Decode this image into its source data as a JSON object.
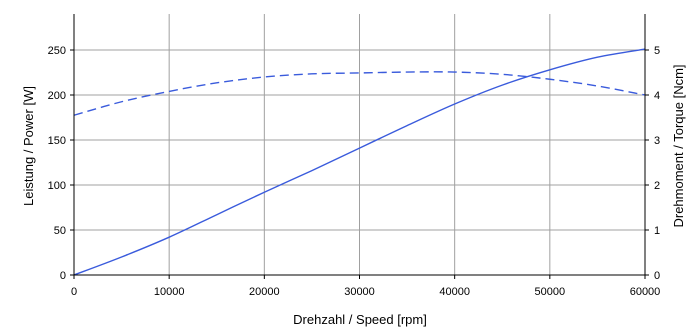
{
  "chart_data": {
    "type": "line",
    "xlabel": "Drehzahl / Speed [rpm]",
    "ylabel": "Leistung / Power [W]",
    "y2label": "Drehmoment / Torque [Ncm]",
    "xlim": [
      0,
      60000
    ],
    "ylim": [
      0,
      290
    ],
    "y2lim": [
      0,
      5.8
    ],
    "x_ticks": [
      0,
      10000,
      20000,
      30000,
      40000,
      50000,
      60000
    ],
    "y_ticks": [
      0,
      50,
      100,
      150,
      200,
      250
    ],
    "y2_ticks": [
      0,
      1,
      2,
      3,
      4,
      5
    ],
    "grid": "vertical",
    "line_color": "#3a5bdc",
    "series": [
      {
        "axis": "left",
        "style": "solid",
        "x": [
          0,
          5000,
          10000,
          15000,
          20000,
          25000,
          30000,
          35000,
          40000,
          45000,
          50000,
          55000,
          60000
        ],
        "values": [
          0,
          20,
          42,
          67,
          92,
          116,
          141,
          166,
          190,
          211,
          228,
          242,
          251
        ]
      },
      {
        "axis": "right",
        "style": "dashed",
        "x": [
          0,
          5000,
          10000,
          15000,
          20000,
          25000,
          30000,
          35000,
          40000,
          45000,
          50000,
          55000,
          60000
        ],
        "values": [
          3.55,
          3.85,
          4.08,
          4.27,
          4.4,
          4.47,
          4.49,
          4.51,
          4.51,
          4.46,
          4.35,
          4.2,
          4.0
        ]
      }
    ]
  }
}
